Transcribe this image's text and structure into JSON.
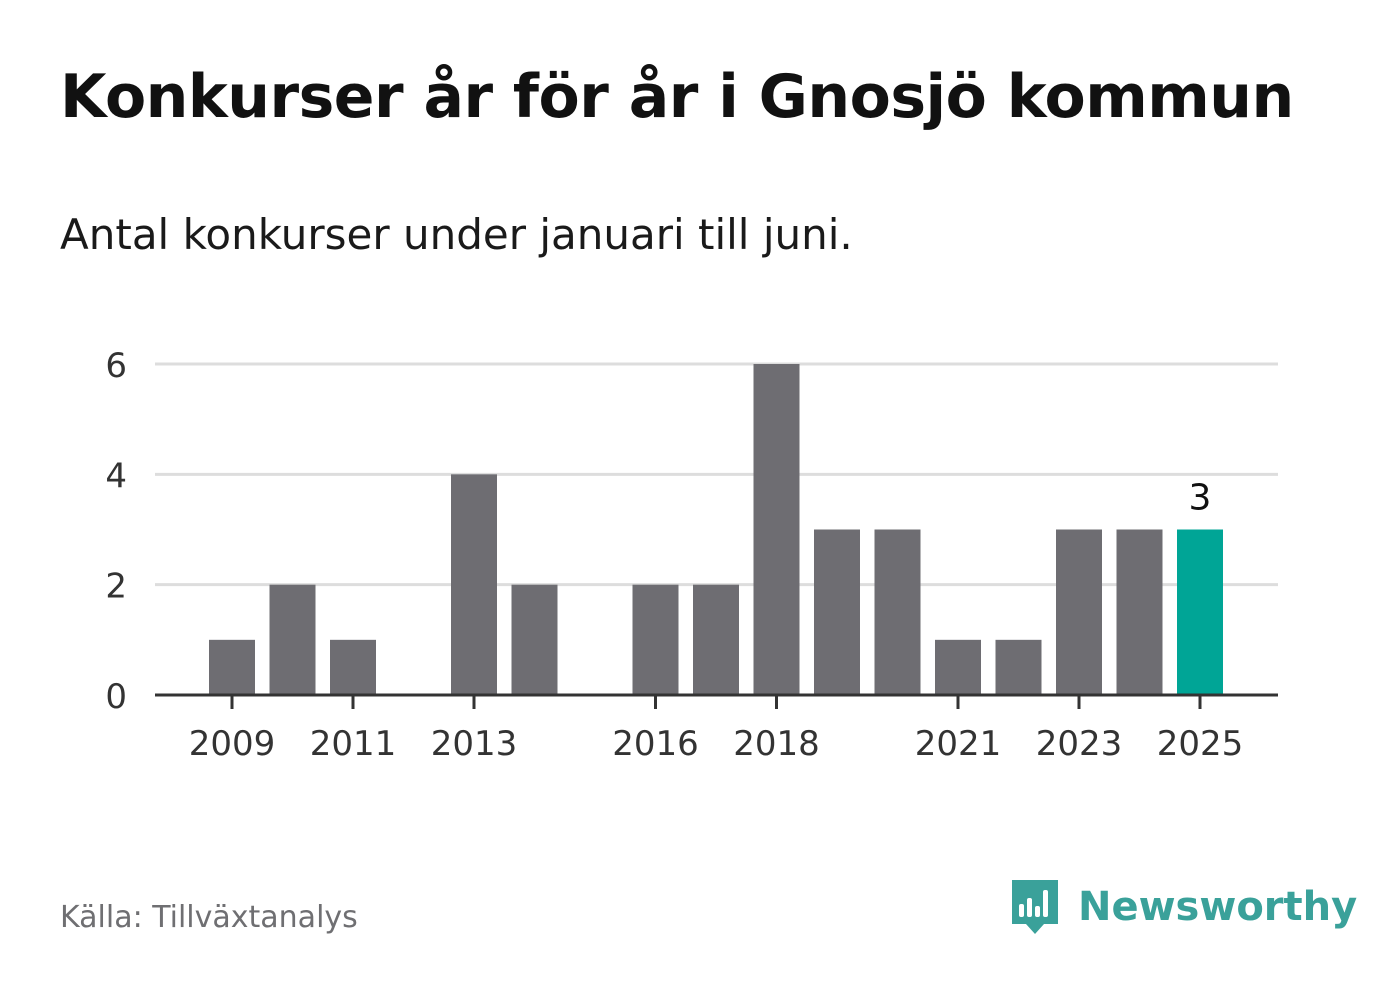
{
  "title": "Konkurser år för år i Gnosjö kommun",
  "subtitle": "Antal konkurser under januari till juni.",
  "source": "Källa: Tillväxtanalys",
  "brand": "Newsworthy",
  "colors": {
    "bar": "#6e6d72",
    "highlight": "#00a596",
    "grid": "#dddddd",
    "axis": "#333333",
    "tick_text": "#333333",
    "brand": "#3aa19a"
  },
  "chart_data": {
    "type": "bar",
    "categories": [
      "2009",
      "2010",
      "2011",
      "2012",
      "2013",
      "2014",
      "2015",
      "2016",
      "2017",
      "2018",
      "2019",
      "2020",
      "2021",
      "2022",
      "2023",
      "2024",
      "2025"
    ],
    "values": [
      1,
      2,
      1,
      0,
      4,
      2,
      0,
      2,
      2,
      6,
      3,
      3,
      1,
      1,
      3,
      3,
      3
    ],
    "x_tick_labels": [
      "2009",
      "2011",
      "2013",
      "2016",
      "2018",
      "2021",
      "2023",
      "2025"
    ],
    "y_ticks": [
      0,
      2,
      4,
      6
    ],
    "ylim": [
      0,
      6
    ],
    "highlight_category": "2025",
    "annotations": [
      {
        "category": "2025",
        "text": "3"
      }
    ],
    "grid": true,
    "xlabel": "",
    "ylabel": ""
  }
}
